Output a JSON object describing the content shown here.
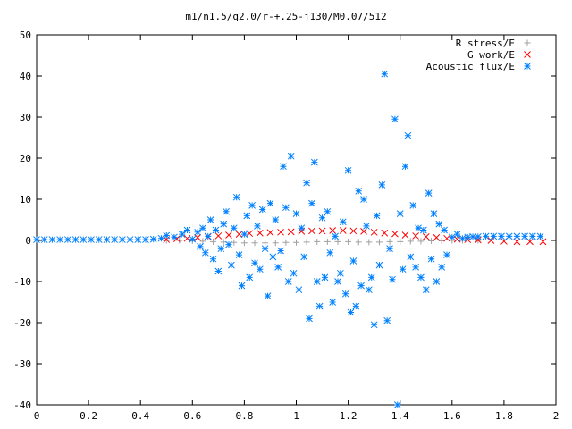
{
  "chart_data": {
    "type": "scatter",
    "title": "m1/n1.5/q2.0/r-+.25-j130/M0.07/512",
    "xlabel": "",
    "ylabel": "",
    "xlim": [
      0,
      2
    ],
    "ylim": [
      -40,
      50
    ],
    "x_ticks": [
      "0",
      "0.2",
      "0.4",
      "0.6",
      "0.8",
      "1",
      "1.2",
      "1.4",
      "1.6",
      "1.8",
      "2"
    ],
    "y_ticks": [
      "-40",
      "-30",
      "-20",
      "-10",
      "0",
      "10",
      "20",
      "30",
      "40",
      "50"
    ],
    "grid": false,
    "legend_position": "top-right",
    "series": [
      {
        "name": "R stress/E",
        "marker": "plus",
        "color": "#a0a0a0",
        "points": [
          [
            0.5,
            0.0
          ],
          [
            0.55,
            0.0
          ],
          [
            0.6,
            -0.1
          ],
          [
            0.64,
            -0.2
          ],
          [
            0.68,
            -0.3
          ],
          [
            0.72,
            -0.4
          ],
          [
            0.76,
            -0.5
          ],
          [
            0.8,
            -0.6
          ],
          [
            0.84,
            -0.6
          ],
          [
            0.88,
            -0.6
          ],
          [
            0.92,
            -0.6
          ],
          [
            0.96,
            -0.5
          ],
          [
            1.0,
            -0.5
          ],
          [
            1.04,
            -0.4
          ],
          [
            1.08,
            -0.3
          ],
          [
            1.12,
            -0.3
          ],
          [
            1.16,
            -0.3
          ],
          [
            1.2,
            -0.3
          ],
          [
            1.24,
            -0.4
          ],
          [
            1.28,
            -0.4
          ],
          [
            1.32,
            -0.4
          ],
          [
            1.36,
            -0.3
          ],
          [
            1.4,
            -0.3
          ],
          [
            1.44,
            -0.2
          ],
          [
            1.48,
            -0.2
          ],
          [
            1.52,
            -0.1
          ],
          [
            1.56,
            -0.1
          ],
          [
            1.6,
            0.0
          ],
          [
            1.64,
            0.0
          ],
          [
            1.7,
            0.0
          ]
        ]
      },
      {
        "name": "G work/E",
        "marker": "cross",
        "color": "#ff0000",
        "points": [
          [
            0.5,
            0.2
          ],
          [
            0.54,
            0.4
          ],
          [
            0.58,
            0.5
          ],
          [
            0.62,
            0.7
          ],
          [
            0.66,
            0.9
          ],
          [
            0.7,
            1.1
          ],
          [
            0.74,
            1.3
          ],
          [
            0.78,
            1.5
          ],
          [
            0.82,
            1.7
          ],
          [
            0.86,
            1.8
          ],
          [
            0.9,
            1.9
          ],
          [
            0.94,
            2.0
          ],
          [
            0.98,
            2.1
          ],
          [
            1.02,
            2.2
          ],
          [
            1.06,
            2.3
          ],
          [
            1.1,
            2.3
          ],
          [
            1.14,
            2.4
          ],
          [
            1.18,
            2.4
          ],
          [
            1.22,
            2.3
          ],
          [
            1.26,
            2.2
          ],
          [
            1.3,
            2.0
          ],
          [
            1.34,
            1.8
          ],
          [
            1.38,
            1.6
          ],
          [
            1.42,
            1.3
          ],
          [
            1.46,
            1.1
          ],
          [
            1.5,
            0.9
          ],
          [
            1.54,
            0.7
          ],
          [
            1.58,
            0.5
          ],
          [
            1.62,
            0.3
          ],
          [
            1.66,
            0.2
          ],
          [
            1.7,
            0.1
          ],
          [
            1.75,
            0.0
          ],
          [
            1.8,
            -0.2
          ],
          [
            1.85,
            -0.3
          ],
          [
            1.9,
            -0.3
          ],
          [
            1.95,
            -0.3
          ]
        ]
      },
      {
        "name": "Acoustic flux/E",
        "marker": "star",
        "color": "#0080ff",
        "points": [
          [
            0.0,
            0.2
          ],
          [
            0.03,
            0.2
          ],
          [
            0.06,
            0.2
          ],
          [
            0.09,
            0.2
          ],
          [
            0.12,
            0.2
          ],
          [
            0.15,
            0.2
          ],
          [
            0.18,
            0.2
          ],
          [
            0.21,
            0.2
          ],
          [
            0.24,
            0.2
          ],
          [
            0.27,
            0.2
          ],
          [
            0.3,
            0.2
          ],
          [
            0.33,
            0.2
          ],
          [
            0.36,
            0.2
          ],
          [
            0.39,
            0.2
          ],
          [
            0.42,
            0.2
          ],
          [
            0.45,
            0.3
          ],
          [
            0.48,
            0.5
          ],
          [
            0.5,
            1.2
          ],
          [
            0.53,
            0.8
          ],
          [
            0.56,
            1.5
          ],
          [
            0.58,
            2.5
          ],
          [
            0.6,
            0.3
          ],
          [
            0.62,
            2.0
          ],
          [
            0.63,
            -1.5
          ],
          [
            0.64,
            3.0
          ],
          [
            0.65,
            -3.0
          ],
          [
            0.66,
            1.0
          ],
          [
            0.67,
            5.0
          ],
          [
            0.68,
            -4.5
          ],
          [
            0.69,
            2.5
          ],
          [
            0.7,
            -7.5
          ],
          [
            0.71,
            -2.0
          ],
          [
            0.72,
            4.0
          ],
          [
            0.73,
            7.0
          ],
          [
            0.74,
            -1.0
          ],
          [
            0.75,
            -6.0
          ],
          [
            0.76,
            3.0
          ],
          [
            0.77,
            10.5
          ],
          [
            0.78,
            -3.5
          ],
          [
            0.79,
            -11.0
          ],
          [
            0.8,
            1.5
          ],
          [
            0.81,
            6.0
          ],
          [
            0.82,
            -9.0
          ],
          [
            0.83,
            8.5
          ],
          [
            0.84,
            -5.5
          ],
          [
            0.85,
            3.5
          ],
          [
            0.86,
            -7.0
          ],
          [
            0.87,
            7.5
          ],
          [
            0.88,
            -2.0
          ],
          [
            0.89,
            -13.5
          ],
          [
            0.9,
            9.0
          ],
          [
            0.91,
            -4.0
          ],
          [
            0.92,
            5.0
          ],
          [
            0.93,
            -6.5
          ],
          [
            0.94,
            -2.5
          ],
          [
            0.95,
            18.0
          ],
          [
            0.96,
            8.0
          ],
          [
            0.97,
            -10.0
          ],
          [
            0.98,
            20.5
          ],
          [
            0.99,
            -8.0
          ],
          [
            1.0,
            6.5
          ],
          [
            1.01,
            -12.0
          ],
          [
            1.02,
            3.0
          ],
          [
            1.03,
            -4.0
          ],
          [
            1.04,
            14.0
          ],
          [
            1.05,
            -19.0
          ],
          [
            1.06,
            9.0
          ],
          [
            1.07,
            19.0
          ],
          [
            1.08,
            -10.0
          ],
          [
            1.09,
            -16.0
          ],
          [
            1.1,
            5.5
          ],
          [
            1.11,
            -9.0
          ],
          [
            1.12,
            7.0
          ],
          [
            1.13,
            -3.0
          ],
          [
            1.14,
            -15.0
          ],
          [
            1.15,
            1.0
          ],
          [
            1.16,
            -10.0
          ],
          [
            1.17,
            -8.0
          ],
          [
            1.18,
            4.5
          ],
          [
            1.19,
            -13.0
          ],
          [
            1.2,
            17.0
          ],
          [
            1.21,
            -17.5
          ],
          [
            1.22,
            -5.0
          ],
          [
            1.23,
            -16.0
          ],
          [
            1.24,
            12.0
          ],
          [
            1.25,
            -11.0
          ],
          [
            1.26,
            10.0
          ],
          [
            1.27,
            3.5
          ],
          [
            1.28,
            -12.0
          ],
          [
            1.29,
            -9.0
          ],
          [
            1.3,
            -20.5
          ],
          [
            1.31,
            6.0
          ],
          [
            1.32,
            -6.0
          ],
          [
            1.33,
            13.5
          ],
          [
            1.34,
            40.5
          ],
          [
            1.35,
            -19.5
          ],
          [
            1.36,
            -2.0
          ],
          [
            1.37,
            -9.5
          ],
          [
            1.38,
            29.5
          ],
          [
            1.39,
            -40.0
          ],
          [
            1.4,
            6.5
          ],
          [
            1.41,
            -7.0
          ],
          [
            1.42,
            18.0
          ],
          [
            1.43,
            25.5
          ],
          [
            1.44,
            -4.0
          ],
          [
            1.45,
            8.5
          ],
          [
            1.46,
            -6.5
          ],
          [
            1.47,
            3.0
          ],
          [
            1.48,
            -9.0
          ],
          [
            1.49,
            2.5
          ],
          [
            1.5,
            -12.0
          ],
          [
            1.51,
            11.5
          ],
          [
            1.52,
            -4.5
          ],
          [
            1.53,
            6.5
          ],
          [
            1.54,
            -10.0
          ],
          [
            1.55,
            4.0
          ],
          [
            1.56,
            -6.5
          ],
          [
            1.57,
            2.5
          ],
          [
            1.58,
            -3.5
          ],
          [
            1.6,
            0.8
          ],
          [
            1.62,
            1.5
          ],
          [
            1.64,
            0.5
          ],
          [
            1.66,
            0.8
          ],
          [
            1.68,
            0.9
          ],
          [
            1.7,
            0.9
          ],
          [
            1.73,
            1.0
          ],
          [
            1.76,
            1.0
          ],
          [
            1.79,
            1.0
          ],
          [
            1.82,
            1.0
          ],
          [
            1.85,
            1.0
          ],
          [
            1.88,
            1.0
          ],
          [
            1.91,
            1.0
          ],
          [
            1.94,
            1.0
          ]
        ]
      }
    ]
  }
}
